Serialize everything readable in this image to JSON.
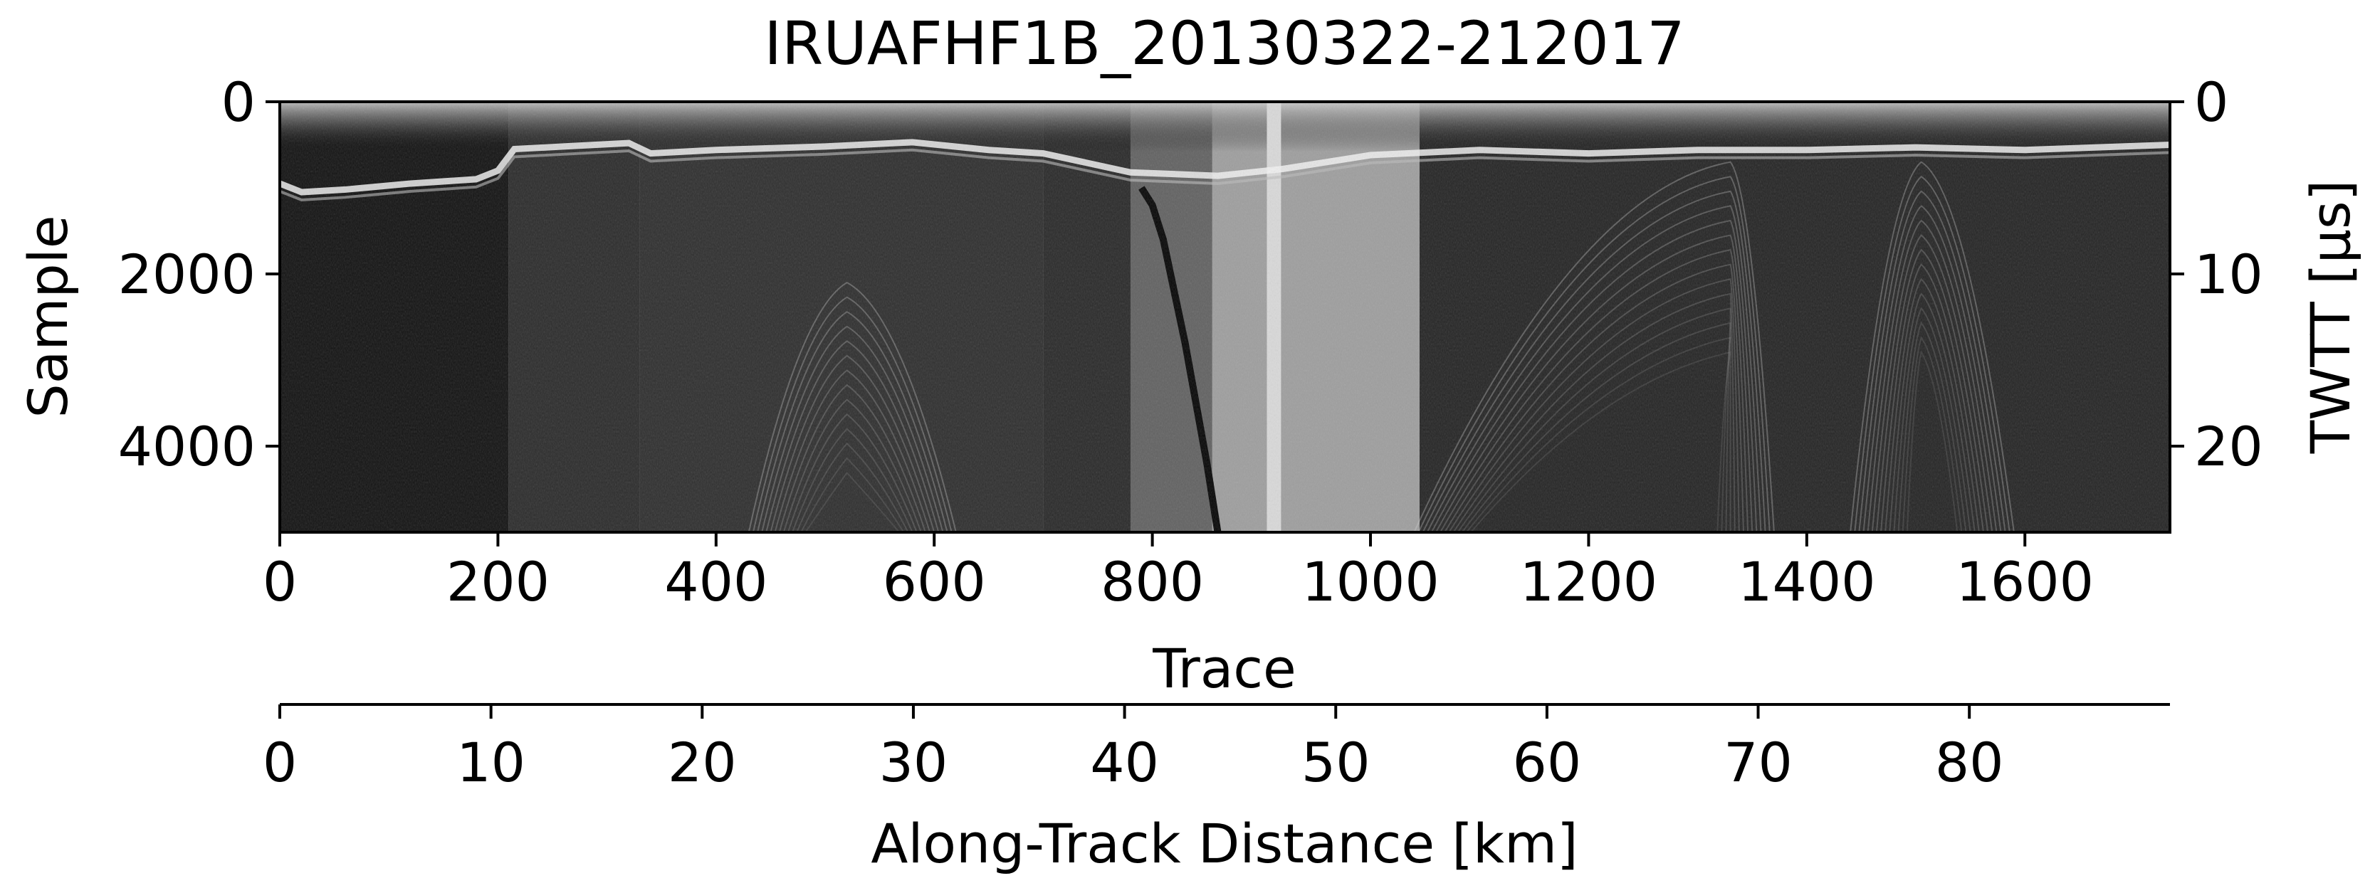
{
  "chart_data": {
    "type": "heatmap",
    "title": "IRUAFHF1B_20130322-212017",
    "colormap": "grayscale",
    "xlabel": "Trace",
    "ylabel": "Sample",
    "ylabel_right": "TWTT [µs]",
    "xlabel_bottom": "Along-Track Distance [km]",
    "xlim": [
      0,
      1733
    ],
    "ylim": [
      5000,
      0
    ],
    "ylim_right": [
      25,
      0
    ],
    "xlim_bottom": [
      0,
      89.5
    ],
    "x_ticks": [
      0,
      200,
      400,
      600,
      800,
      1000,
      1200,
      1400,
      1600
    ],
    "y_ticks": [
      0,
      2000,
      4000
    ],
    "y_right_ticks": [
      0,
      10,
      20
    ],
    "x_bottom_ticks": [
      0,
      10,
      20,
      30,
      40,
      50,
      60,
      70,
      80
    ],
    "grid": false,
    "surface_reflector": {
      "trace": [
        0,
        20,
        60,
        120,
        180,
        200,
        215,
        260,
        320,
        340,
        400,
        500,
        580,
        650,
        700,
        780,
        860,
        920,
        1000,
        1100,
        1200,
        1300,
        1400,
        1500,
        1600,
        1733
      ],
      "sample": [
        950,
        1050,
        1020,
        950,
        900,
        800,
        550,
        520,
        480,
        600,
        560,
        520,
        470,
        560,
        600,
        820,
        860,
        780,
        620,
        560,
        600,
        560,
        560,
        530,
        560,
        500
      ]
    },
    "bed_reflector": {
      "trace": [
        790,
        800,
        810,
        820,
        830,
        840,
        850,
        860
      ],
      "sample": [
        1000,
        1200,
        1600,
        2200,
        2800,
        3500,
        4200,
        5000
      ]
    },
    "bright_columns": [
      {
        "trace_start": 905,
        "trace_end": 918,
        "level": 0.85
      }
    ],
    "segments": [
      {
        "trace_start": 0,
        "trace_end": 210,
        "level": 0.07
      },
      {
        "trace_start": 210,
        "trace_end": 330,
        "level": 0.17
      },
      {
        "trace_start": 330,
        "trace_end": 700,
        "level": 0.18
      },
      {
        "trace_start": 700,
        "trace_end": 780,
        "level": 0.16
      },
      {
        "trace_start": 780,
        "trace_end": 855,
        "level": 0.38
      },
      {
        "trace_start": 855,
        "trace_end": 1045,
        "level": 0.62
      },
      {
        "trace_start": 1045,
        "trace_end": 1733,
        "level": 0.14
      }
    ],
    "diffraction_hyperbolas": [
      {
        "apex_trace": 1330,
        "apex_sample": 700,
        "left_trace": 1040,
        "right_trace": 1370
      },
      {
        "apex_trace": 1505,
        "apex_sample": 700,
        "left_trace": 1440,
        "right_trace": 1590
      },
      {
        "apex_trace": 520,
        "apex_sample": 2100,
        "left_trace": 430,
        "right_trace": 620
      }
    ]
  }
}
